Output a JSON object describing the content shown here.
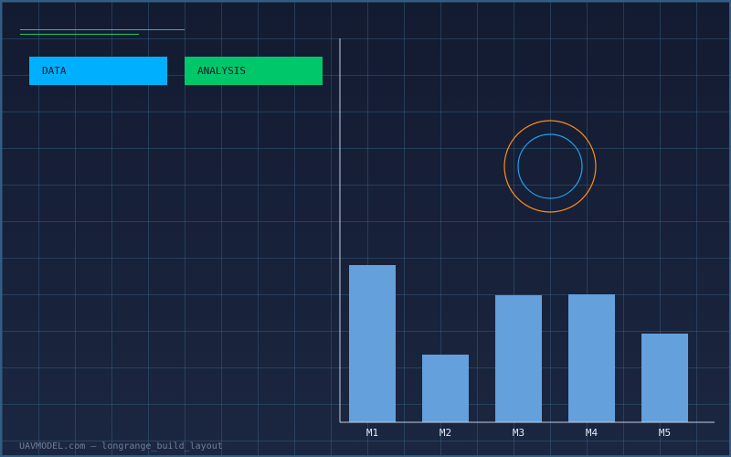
{
  "theme": {
    "background": "#141c30",
    "grid": "#2f5e86",
    "accent_blue": "#00b0ff",
    "accent_green": "#00c86a",
    "bar_color": "#64a0dc",
    "ring_outer": "#ff8c1a",
    "ring_inner": "#1ea0f0"
  },
  "tags": {
    "data_label": "DATA",
    "analysis_label": "ANALYSIS"
  },
  "chart_data": {
    "type": "bar",
    "title": "",
    "xlabel": "",
    "ylabel": "",
    "categories": [
      "M1",
      "M2",
      "M3",
      "M4",
      "M5"
    ],
    "values": [
      172,
      74,
      139,
      140,
      97
    ],
    "ylim": [
      0,
      420
    ],
    "grid": true,
    "legend": "none"
  },
  "footer": {
    "text": "UAVMODEL.com – longrange_build_layout"
  }
}
